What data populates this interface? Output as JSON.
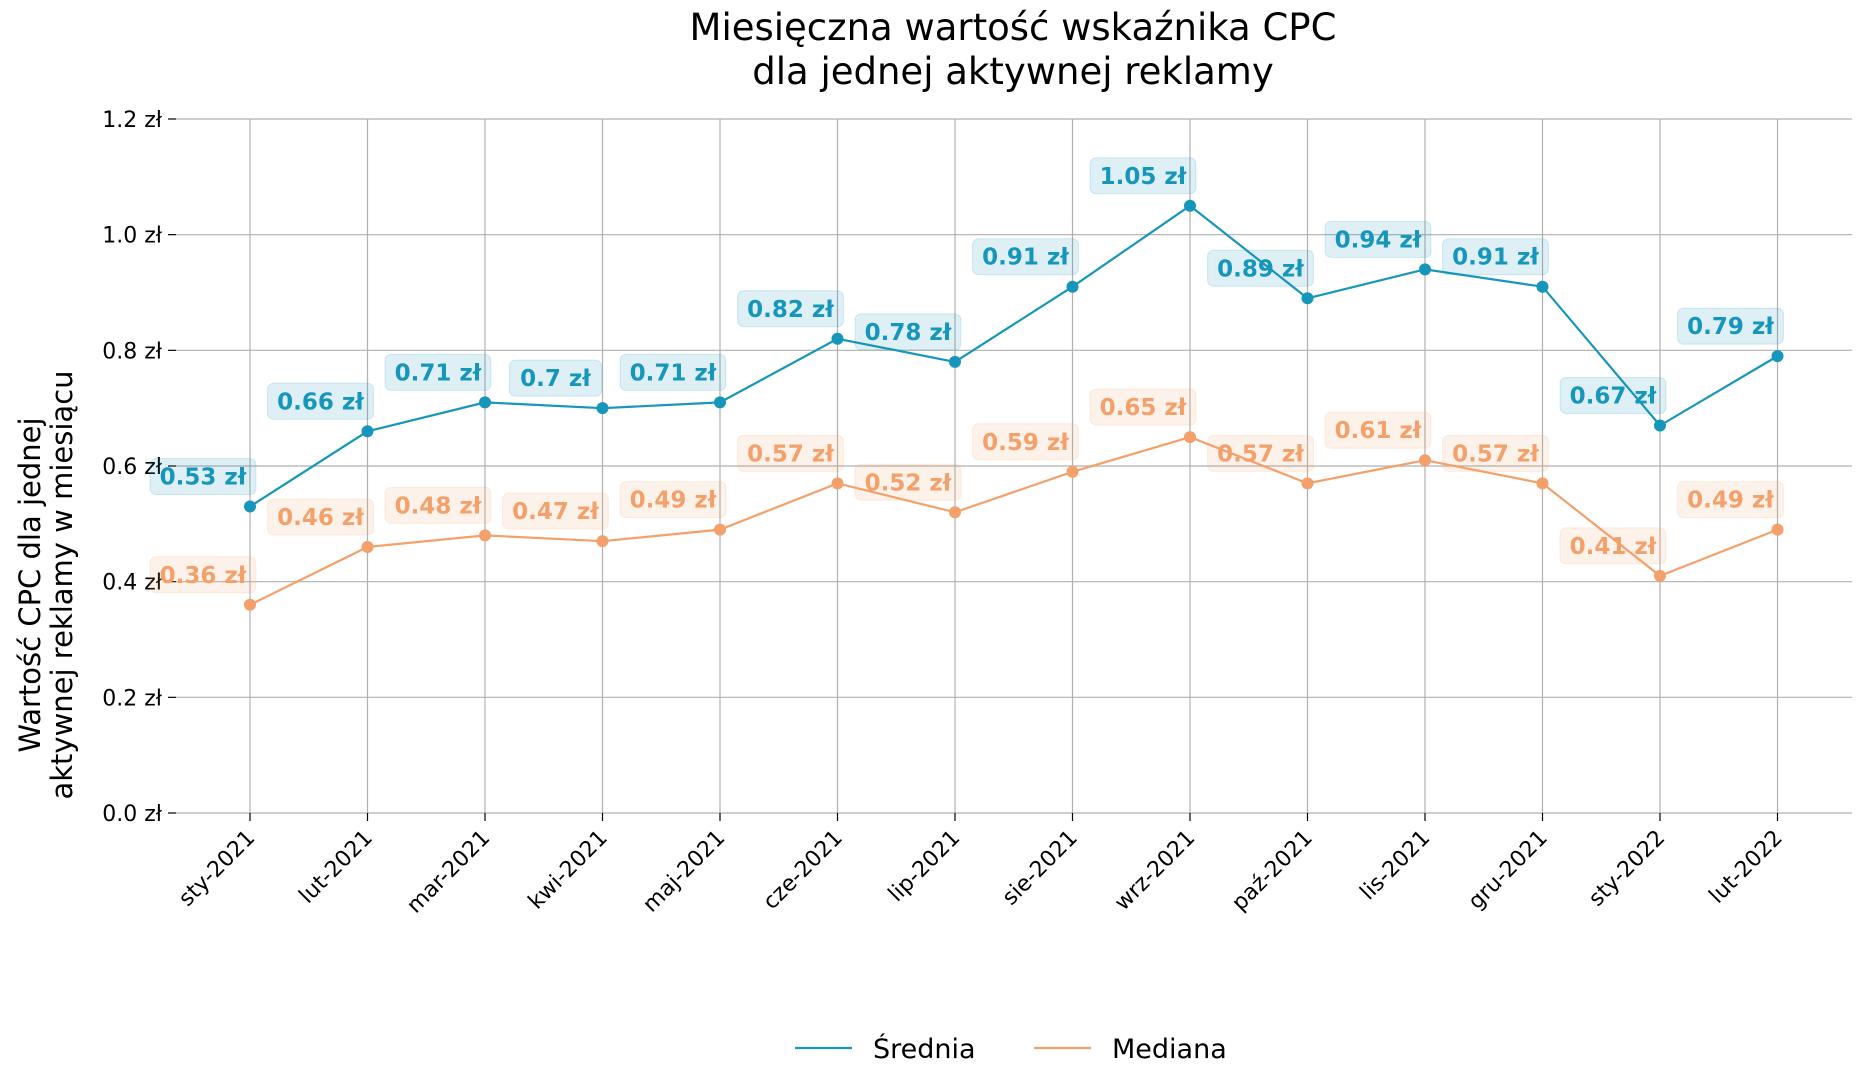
{
  "chart_data": {
    "type": "line",
    "title_line1": "Miesięczna wartość wskaźnika CPC",
    "title_line2": "dla jednej aktywnej reklamy",
    "ylabel_line1": "Wartość CPC dla jednej",
    "ylabel_line2": "aktywnej reklamy w miesiącu",
    "xlabel": "",
    "ylim": [
      0,
      1.2
    ],
    "yticks": [
      {
        "value": 0.0,
        "label": "0.0 zł"
      },
      {
        "value": 0.2,
        "label": "0.2 zł"
      },
      {
        "value": 0.4,
        "label": "0.4 zł"
      },
      {
        "value": 0.6,
        "label": "0.6 zł"
      },
      {
        "value": 0.8,
        "label": "0.8 zł"
      },
      {
        "value": 1.0,
        "label": "1.0 zł"
      },
      {
        "value": 1.2,
        "label": "1.2 zł"
      }
    ],
    "categories": [
      "sty-2021",
      "lut-2021",
      "mar-2021",
      "kwi-2021",
      "maj-2021",
      "cze-2021",
      "lip-2021",
      "sie-2021",
      "wrz-2021",
      "paź-2021",
      "lis-2021",
      "gru-2021",
      "sty-2022",
      "lut-2022"
    ],
    "grid": true,
    "legend_position": "bottom-center",
    "series": [
      {
        "name": "Średnia",
        "color": "#1696bb",
        "values": [
          0.53,
          0.66,
          0.71,
          0.7,
          0.71,
          0.82,
          0.78,
          0.91,
          1.05,
          0.89,
          0.94,
          0.91,
          0.67,
          0.79
        ],
        "labels": [
          "0.53 zł",
          "0.66 zł",
          "0.71 zł",
          "0.7 zł",
          "0.71 zł",
          "0.82 zł",
          "0.78 zł",
          "0.91 zł",
          "1.05 zł",
          "0.89 zł",
          "0.94 zł",
          "0.91 zł",
          "0.67 zł",
          "0.79 zł"
        ]
      },
      {
        "name": "Mediana",
        "color": "#f4a06a",
        "values": [
          0.36,
          0.46,
          0.48,
          0.47,
          0.49,
          0.57,
          0.52,
          0.59,
          0.65,
          0.57,
          0.61,
          0.57,
          0.41,
          0.49
        ],
        "labels": [
          "0.36 zł",
          "0.46 zł",
          "0.48 zł",
          "0.47 zł",
          "0.49 zł",
          "0.57 zł",
          "0.52 zł",
          "0.59 zł",
          "0.65 zł",
          "0.57 zł",
          "0.61 zł",
          "0.57 zł",
          "0.41 zł",
          "0.49 zł"
        ]
      }
    ]
  }
}
